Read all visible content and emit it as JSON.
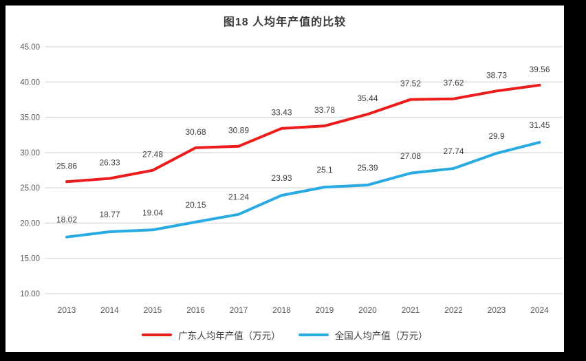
{
  "frame": {
    "border_color": "#000000",
    "canvas_color": "#ffffff"
  },
  "chart_data": {
    "type": "line",
    "title": "图18 人均年产值的比较",
    "x": [
      "2013",
      "2014",
      "2015",
      "2016",
      "2017",
      "2018",
      "2019",
      "2020",
      "2021",
      "2022",
      "2023",
      "2024"
    ],
    "series": [
      {
        "key": "guangdong",
        "name": "广东人均年产值（万元）",
        "color": "#ed1c1c",
        "values": [
          25.86,
          26.33,
          27.48,
          30.68,
          30.89,
          33.43,
          33.78,
          35.44,
          37.52,
          37.62,
          38.73,
          39.56
        ]
      },
      {
        "key": "national",
        "name": "全国人均产值（万元）",
        "color": "#29abe2",
        "values": [
          18.02,
          18.77,
          19.04,
          20.15,
          21.24,
          23.93,
          25.1,
          25.39,
          27.08,
          27.74,
          29.9,
          31.45
        ]
      }
    ],
    "ylim": [
      10,
      45
    ],
    "yticks": [
      45,
      40,
      35,
      30,
      25,
      20,
      15,
      10
    ],
    "ytick_labels": [
      "45.00",
      "40.00",
      "35.00",
      "30.00",
      "25.00",
      "20.00",
      "15.00",
      "10.00"
    ],
    "grid": true,
    "data_labels": true,
    "legend_position": "bottom"
  },
  "colors": {
    "gridline": "#d9d9d9",
    "axis_text": "#595959",
    "data_label_text": "#404040",
    "title_text": "#3a3a3a",
    "legend_text": "#404040"
  }
}
